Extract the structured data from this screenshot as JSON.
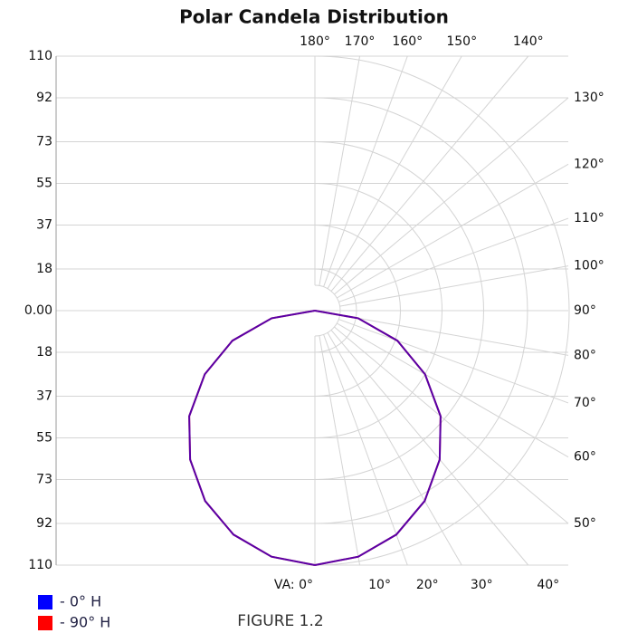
{
  "chart_data": {
    "type": "polar",
    "title": "Polar Candela Distribution",
    "caption": "FIGURE 1.2",
    "ylim": [
      -110,
      110
    ],
    "yticks": [
      110,
      92,
      73,
      55,
      37,
      18,
      {
        "value": 0,
        "label": "0.00"
      },
      {
        "value": -18,
        "label": "18"
      },
      {
        "value": -37,
        "label": "37"
      },
      {
        "value": -55,
        "label": "55"
      },
      {
        "value": -73,
        "label": "73"
      },
      {
        "value": -92,
        "label": "92"
      },
      {
        "value": -110,
        "label": "110"
      }
    ],
    "angle_ticks": [
      {
        "value": 0,
        "label": "VA: 0°"
      },
      {
        "value": 10,
        "label": "10°"
      },
      {
        "value": 20,
        "label": "20°"
      },
      {
        "value": 30,
        "label": "30°"
      },
      {
        "value": 40,
        "label": "40°"
      },
      {
        "value": 50,
        "label": "50°"
      },
      {
        "value": 60,
        "label": "60°"
      },
      {
        "value": 70,
        "label": "70°"
      },
      {
        "value": 80,
        "label": "80°"
      },
      {
        "value": 90,
        "label": "90°"
      },
      {
        "value": 100,
        "label": "100°"
      },
      {
        "value": 110,
        "label": "110°"
      },
      {
        "value": 120,
        "label": "120°"
      },
      {
        "value": 130,
        "label": "130°"
      },
      {
        "value": 140,
        "label": "140°"
      },
      {
        "value": 150,
        "label": "150°"
      },
      {
        "value": 160,
        "label": "160°"
      },
      {
        "value": 170,
        "label": "170°"
      },
      {
        "value": 180,
        "label": "180°"
      }
    ],
    "x": [
      0,
      10,
      20,
      30,
      40,
      50,
      60,
      70,
      80,
      90
    ],
    "series": [
      {
        "name": "- 0° H",
        "color": "#0000ff",
        "values": [
          110,
          108,
          103,
          95,
          84,
          71,
          55,
          38,
          19,
          0
        ]
      },
      {
        "name": "- 90° H",
        "color": "#ff0000",
        "values": [
          110,
          108,
          103,
          95,
          84,
          71,
          55,
          38,
          19,
          0
        ]
      }
    ],
    "grid": true
  }
}
